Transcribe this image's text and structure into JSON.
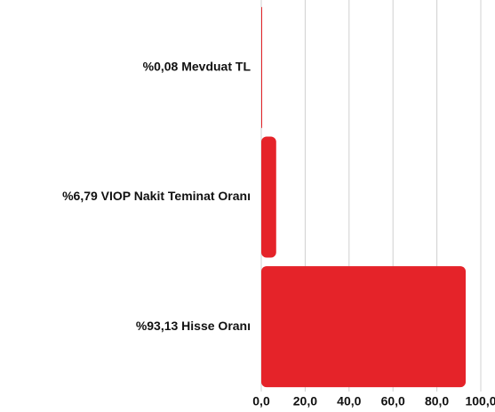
{
  "chart_data": {
    "type": "bar",
    "orientation": "horizontal",
    "categories": [
      "%0,08 Mevduat TL",
      "%6,79 VIOP Nakit Teminat Oranı",
      "%93,13 Hisse Oranı"
    ],
    "values": [
      0.08,
      6.79,
      93.13
    ],
    "color": "#e52329",
    "xlim": [
      0,
      100
    ],
    "xticks": [
      {
        "value": 0,
        "label": "0,0"
      },
      {
        "value": 20,
        "label": "20,0"
      },
      {
        "value": 40,
        "label": "40,0"
      },
      {
        "value": 60,
        "label": "60,0"
      },
      {
        "value": 80,
        "label": "80,0"
      },
      {
        "value": 100,
        "label": "100,0"
      }
    ],
    "grid": true
  }
}
